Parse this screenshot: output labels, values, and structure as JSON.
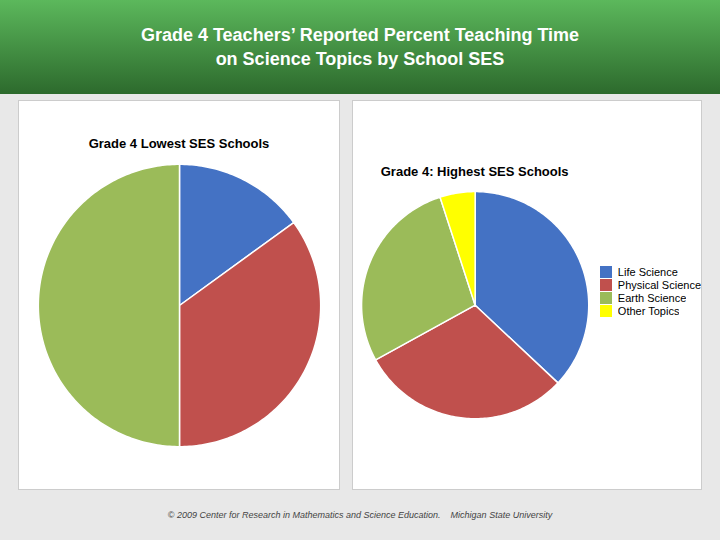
{
  "title": [
    "Grade 4 Teachers’ Reported Percent Teaching Time",
    "on Science Topics by School SES"
  ],
  "caption": "© 2009 Center for Research in Mathematics and Science Education.    Michigan State University",
  "chart_data": [
    {
      "type": "pie",
      "title": "Grade 4 Lowest SES Schools",
      "categories": [
        "Life Science",
        "Physical Science",
        "Earth Science"
      ],
      "values": [
        15,
        35,
        50
      ],
      "colors": [
        "#4472C4",
        "#C0504D",
        "#9BBB59"
      ]
    },
    {
      "type": "pie",
      "title": "Grade 4: Highest SES Schools",
      "categories": [
        "Life Science",
        "Physical Science",
        "Earth Science",
        "Other Topics"
      ],
      "values": [
        37,
        30,
        28,
        5
      ],
      "colors": [
        "#4472C4",
        "#C0504D",
        "#9BBB59",
        "#FFFF00"
      ],
      "legend": "right"
    }
  ]
}
